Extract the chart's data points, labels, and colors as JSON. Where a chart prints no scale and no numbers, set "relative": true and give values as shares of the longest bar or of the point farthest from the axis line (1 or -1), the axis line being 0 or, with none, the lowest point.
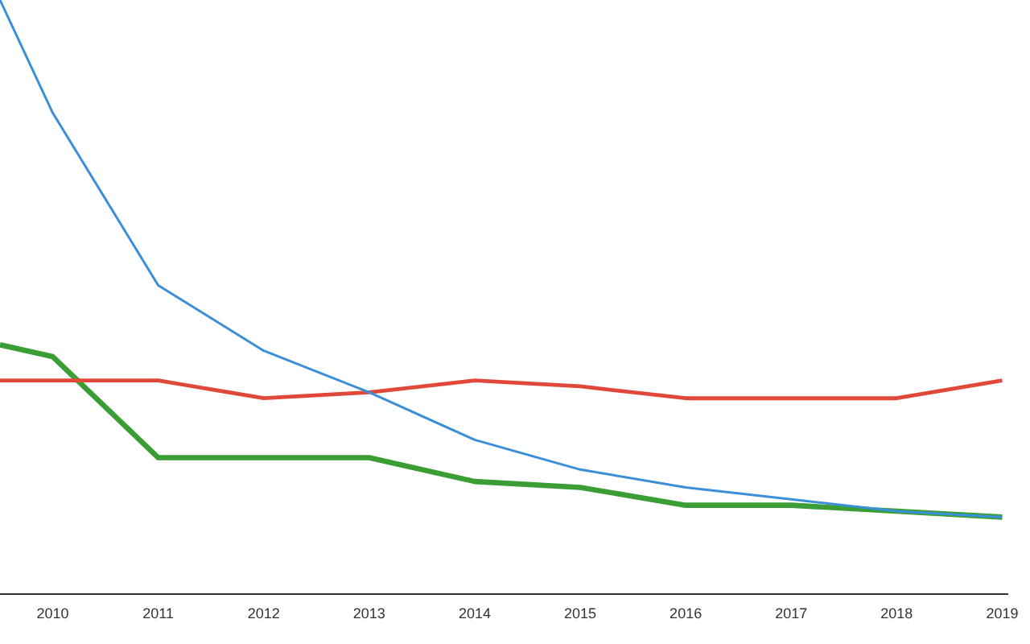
{
  "chart_data": {
    "type": "line",
    "relative": true,
    "grid": false,
    "legend": false,
    "xlim": [
      2009.5,
      2019.05
    ],
    "xticks": [
      2010,
      2011,
      2012,
      2013,
      2014,
      2015,
      2016,
      2017,
      2018,
      2019
    ],
    "x": [
      2009.5,
      2010,
      2011,
      2012,
      2013,
      2014,
      2015,
      2016,
      2017,
      2018,
      2019
    ],
    "series": [
      {
        "color": "#3b8fd9",
        "values": [
          1.0,
          0.81,
          0.52,
          0.41,
          0.34,
          0.26,
          0.21,
          0.18,
          0.16,
          0.14,
          0.13
        ]
      },
      {
        "color": "#e0483a",
        "values": [
          0.36,
          0.36,
          0.36,
          0.33,
          0.34,
          0.36,
          0.35,
          0.33,
          0.33,
          0.33,
          0.36
        ]
      },
      {
        "color": "#3a9e35",
        "values": [
          0.42,
          0.4,
          0.23,
          0.23,
          0.23,
          0.19,
          0.18,
          0.15,
          0.15,
          0.14,
          0.13
        ]
      }
    ]
  }
}
